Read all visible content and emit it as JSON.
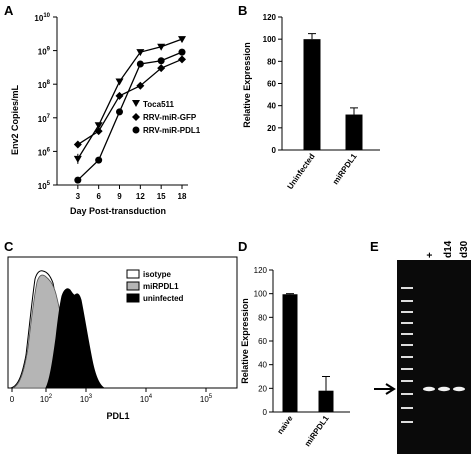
{
  "chart_data": [
    {
      "panel": "A",
      "type": "line",
      "xlabel": "Day Post-transduction",
      "ylabel": "Env2 Copies/mL",
      "log_y": true,
      "x": [
        3,
        6,
        9,
        12,
        15,
        18
      ],
      "xlim": [
        0,
        18
      ],
      "ylim": [
        100000,
        10000000000
      ],
      "y_ticks": [
        {
          "base": "10",
          "exp": "5"
        },
        {
          "base": "10",
          "exp": "6"
        },
        {
          "base": "10",
          "exp": "7"
        },
        {
          "base": "10",
          "exp": "8"
        },
        {
          "base": "10",
          "exp": "9"
        },
        {
          "base": "10",
          "exp": "10"
        }
      ],
      "series": [
        {
          "name": "Toca511",
          "marker": "triangle-down",
          "x": [
            3,
            6,
            9,
            12,
            15,
            18
          ],
          "values": [
            600000,
            6000000,
            120000000,
            900000000,
            1300000000,
            2200000000
          ],
          "error": [
            0.15,
            0,
            0,
            0,
            0,
            0
          ]
        },
        {
          "name": "RRV-miR-GFP",
          "marker": "diamond",
          "x": [
            3,
            6,
            9,
            12,
            15,
            18
          ],
          "values": [
            1600000,
            4000000,
            45000000,
            90000000,
            300000000,
            550000000
          ]
        },
        {
          "name": "RRV-miR-PDL1",
          "marker": "circle",
          "x": [
            3,
            6,
            9,
            12,
            15,
            18
          ],
          "values": [
            140000,
            550000,
            15000000,
            400000000,
            500000000,
            900000000
          ]
        }
      ],
      "legend_position": "center-right"
    },
    {
      "panel": "B",
      "type": "bar",
      "ylabel": "Relative Expression",
      "categories": [
        "Uninfected",
        "miRPDL1"
      ],
      "values": [
        100,
        32
      ],
      "errors": [
        5,
        6
      ],
      "ylim": [
        0,
        120
      ],
      "y_ticks": [
        0,
        20,
        40,
        60,
        80,
        100,
        120
      ]
    },
    {
      "panel": "C",
      "type": "area",
      "xlabel": "PDL1",
      "log_x": true,
      "x_ticks": [
        {
          "base": "10",
          "exp": "2"
        },
        {
          "base": "10",
          "exp": "3"
        },
        {
          "base": "10",
          "exp": "4"
        },
        {
          "base": "10",
          "exp": "5"
        }
      ],
      "x_tick_first": "0",
      "series": [
        {
          "name": "isotype",
          "color": "#ffffff"
        },
        {
          "name": "miRPDL1",
          "color": "#b5b5b5"
        },
        {
          "name": "uninfected",
          "color": "#000000"
        }
      ],
      "legend_position": "top-right"
    },
    {
      "panel": "D",
      "type": "bar",
      "ylabel": "Relative Expression",
      "categories": [
        "naive",
        "miRPDL1"
      ],
      "values": [
        99.5,
        18
      ],
      "errors": [
        0.5,
        12
      ],
      "ylim": [
        0,
        120
      ],
      "y_ticks": [
        0,
        20,
        40,
        60,
        80,
        100,
        120
      ]
    },
    {
      "panel": "E",
      "type": "gel",
      "lane_labels": [
        "+",
        "d14",
        "d30"
      ]
    }
  ]
}
